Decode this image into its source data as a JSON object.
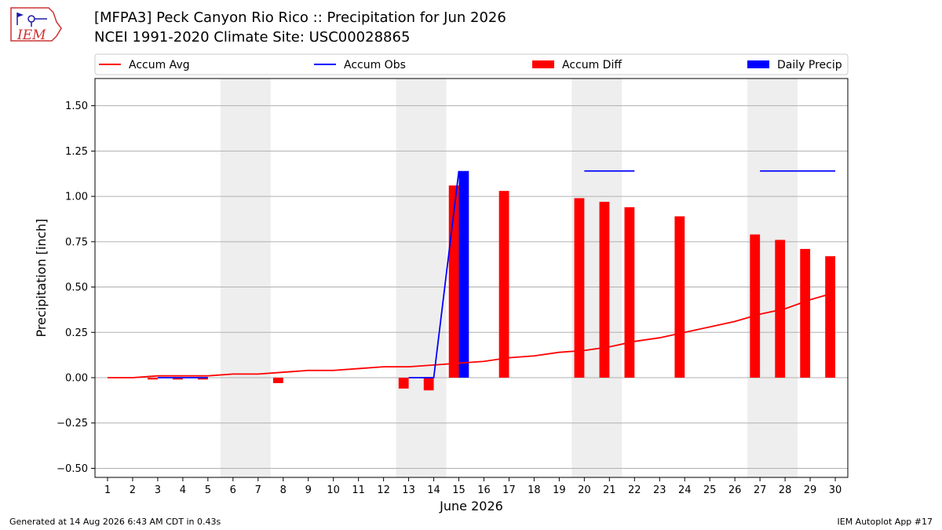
{
  "header": {
    "title_line1": "[MFPA3] Peck Canyon Rio Rico :: Precipitation for Jun 2026",
    "title_line2": "NCEI 1991-2020 Climate Site: USC00028865"
  },
  "logo": {
    "text": "IEM",
    "icon": "iem-logo-icon"
  },
  "footer": {
    "generated": "Generated at 14 Aug 2026 6:43 AM CDT in 0.43s",
    "app": "IEM Autoplot App #17"
  },
  "chart_data": {
    "type": "bar",
    "xlabel": "June 2026",
    "ylabel": "Precipitation [inch]",
    "ylim": [
      -0.55,
      1.65
    ],
    "xlim": [
      0.5,
      30.5
    ],
    "yticks": [
      -0.5,
      -0.25,
      0.0,
      0.25,
      0.5,
      0.75,
      1.0,
      1.25,
      1.5
    ],
    "ytick_labels": [
      "−0.50",
      "−0.25",
      "0.00",
      "0.25",
      "0.50",
      "0.75",
      "1.00",
      "1.25",
      "1.50"
    ],
    "xticks": [
      "1",
      "2",
      "3",
      "4",
      "5",
      "6",
      "7",
      "8",
      "9",
      "10",
      "11",
      "12",
      "13",
      "14",
      "15",
      "16",
      "17",
      "18",
      "19",
      "20",
      "21",
      "22",
      "23",
      "24",
      "25",
      "26",
      "27",
      "28",
      "29",
      "30"
    ],
    "grid": "horizontal",
    "legend": {
      "placement": "top",
      "entries": [
        {
          "label": "Accum Avg",
          "kind": "line",
          "color": "#ff0000"
        },
        {
          "label": "Accum Obs",
          "kind": "line",
          "color": "#0000ff"
        },
        {
          "label": "Accum Diff",
          "kind": "bar",
          "color": "#ff0000"
        },
        {
          "label": "Daily Precip",
          "kind": "bar",
          "color": "#0000ff"
        }
      ]
    },
    "weekend_shading": [
      [
        5.5,
        7.5
      ],
      [
        12.5,
        14.5
      ],
      [
        19.5,
        21.5
      ],
      [
        26.5,
        28.5
      ]
    ],
    "colors": {
      "avg": "#ff0000",
      "obs": "#0000ff",
      "diff": "#ff0000",
      "daily": "#0000ff",
      "shade": "#eeeeee",
      "grid": "#b0b0b0"
    },
    "series": [
      {
        "name": "Accum Avg",
        "kind": "line",
        "x": [
          1,
          2,
          3,
          4,
          5,
          6,
          7,
          8,
          9,
          10,
          11,
          12,
          13,
          14,
          15,
          16,
          17,
          18,
          19,
          20,
          21,
          22,
          23,
          24,
          25,
          26,
          27,
          28,
          29,
          30
        ],
        "values": [
          0.0,
          0.0,
          0.01,
          0.01,
          0.01,
          0.02,
          0.02,
          0.03,
          0.04,
          0.04,
          0.05,
          0.06,
          0.06,
          0.07,
          0.08,
          0.09,
          0.11,
          0.12,
          0.14,
          0.15,
          0.17,
          0.2,
          0.22,
          0.25,
          0.28,
          0.31,
          0.35,
          0.38,
          0.43,
          0.47
        ]
      },
      {
        "name": "Accum Obs",
        "kind": "line",
        "segments": [
          {
            "x": [
              3,
              4,
              5
            ],
            "values": [
              0.0,
              0.0,
              0.0
            ]
          },
          {
            "x": [
              13,
              14,
              15
            ],
            "values": [
              0.0,
              0.0,
              1.14
            ]
          },
          {
            "x": [
              20,
              21,
              22
            ],
            "values": [
              1.14,
              1.14,
              1.14
            ]
          },
          {
            "x": [
              27,
              28,
              29,
              30
            ],
            "values": [
              1.14,
              1.14,
              1.14,
              1.14
            ]
          }
        ]
      },
      {
        "name": "Accum Diff",
        "kind": "bar",
        "x": [
          3,
          4,
          5,
          8,
          13,
          14,
          15,
          17,
          20,
          21,
          22,
          24,
          27,
          28,
          29,
          30
        ],
        "values": [
          -0.01,
          -0.01,
          -0.01,
          -0.03,
          -0.06,
          -0.07,
          1.06,
          1.03,
          0.99,
          0.97,
          0.94,
          0.89,
          0.79,
          0.76,
          0.71,
          0.67
        ]
      },
      {
        "name": "Daily Precip",
        "kind": "bar",
        "x": [
          15
        ],
        "values": [
          1.14
        ]
      }
    ]
  }
}
